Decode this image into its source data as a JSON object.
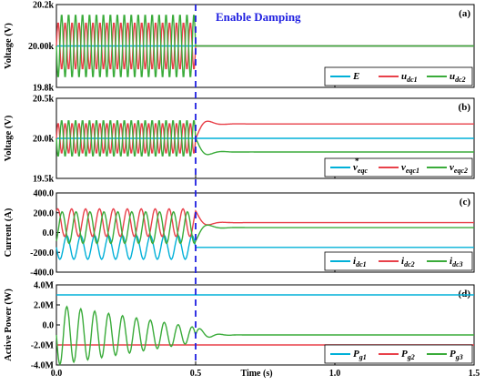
{
  "colors": {
    "cyan": "#00b0d8",
    "red": "#e8414a",
    "green": "#3aab3a",
    "marker": "#1f1fe0",
    "axis": "#000000"
  },
  "annotation": {
    "text": "Enable Damping",
    "x": 0.5
  },
  "x_axis": {
    "label": "Time (s)",
    "ticks": [
      "0.0",
      "0.5",
      "1.0",
      "1.5"
    ],
    "range": [
      0,
      1.5
    ]
  },
  "chart_data": [
    {
      "type": "line",
      "tag": "(a)",
      "ylabel": "Voltage (V)",
      "ylim": [
        19800,
        20200
      ],
      "yticks": [
        19800,
        20000,
        20200
      ],
      "yticklabels": [
        "19.8k",
        "20.00k",
        "20.2k"
      ],
      "series": [
        {
          "name": "E",
          "color": "cyan",
          "kind": "const",
          "base": 20000
        },
        {
          "name": "u_dc1",
          "color": "red",
          "kind": "osc",
          "base": 20000,
          "amp": 115,
          "freq": 40,
          "phase": 0,
          "after": 20000
        },
        {
          "name": "u_dc2",
          "color": "green",
          "kind": "osc",
          "base": 20000,
          "amp": 155,
          "freq": 40,
          "phase": 3.1416,
          "after": 20000
        }
      ]
    },
    {
      "type": "line",
      "tag": "(b)",
      "ylabel": "Voltage (V)",
      "ylim": [
        19500,
        20500
      ],
      "yticks": [
        19500,
        20000,
        20500
      ],
      "yticklabels": [
        "19.5k",
        "20.0k",
        "20.5k"
      ],
      "series": [
        {
          "name": "v*_eqc",
          "color": "cyan",
          "kind": "const",
          "base": 20000
        },
        {
          "name": "v_eqc1",
          "color": "red",
          "kind": "osc",
          "base": 20000,
          "amp": 190,
          "freq": 40,
          "phase": 0,
          "after": 20180
        },
        {
          "name": "v_eqc2",
          "color": "green",
          "kind": "osc",
          "base": 20000,
          "amp": 230,
          "freq": 40,
          "phase": 3.1416,
          "after": 19830
        }
      ]
    },
    {
      "type": "line",
      "tag": "(c)",
      "ylabel": "Current (A)",
      "ylim": [
        -400,
        400
      ],
      "yticks": [
        -400,
        -200,
        0,
        200,
        400
      ],
      "yticklabels": [
        "-400.0",
        "-200.0",
        "0.0",
        "200.0",
        "400.0"
      ],
      "series": [
        {
          "name": "i_dc1",
          "color": "cyan",
          "kind": "osc",
          "base": -150,
          "amp": 120,
          "freq": 20,
          "phase": 3.1416,
          "after": -150
        },
        {
          "name": "i_dc2",
          "color": "red",
          "kind": "osc",
          "base": 100,
          "amp": 140,
          "freq": 20,
          "phase": 1.0,
          "after": 100
        },
        {
          "name": "i_dc3",
          "color": "green",
          "kind": "osc",
          "base": 50,
          "amp": 160,
          "freq": 20,
          "phase": -1.0,
          "after": 50
        }
      ]
    },
    {
      "type": "line",
      "tag": "(d)",
      "ylabel": "Active Power (W)",
      "ylim": [
        -4000000,
        4000000
      ],
      "yticks": [
        -4000000,
        -2000000,
        0,
        2000000,
        4000000
      ],
      "yticklabels": [
        "-4.0M",
        "-2.0M",
        "0.0",
        "2.0M",
        "4.0M"
      ],
      "series": [
        {
          "name": "P_g1",
          "color": "cyan",
          "kind": "const",
          "base": 3000000
        },
        {
          "name": "P_g2",
          "color": "red",
          "kind": "const",
          "base": -2000000
        },
        {
          "name": "P_g3",
          "color": "green",
          "kind": "decay",
          "base": -1000000,
          "amp": 3000000,
          "freq": 20,
          "phase": 3.1416,
          "after": -1000000
        }
      ]
    }
  ]
}
